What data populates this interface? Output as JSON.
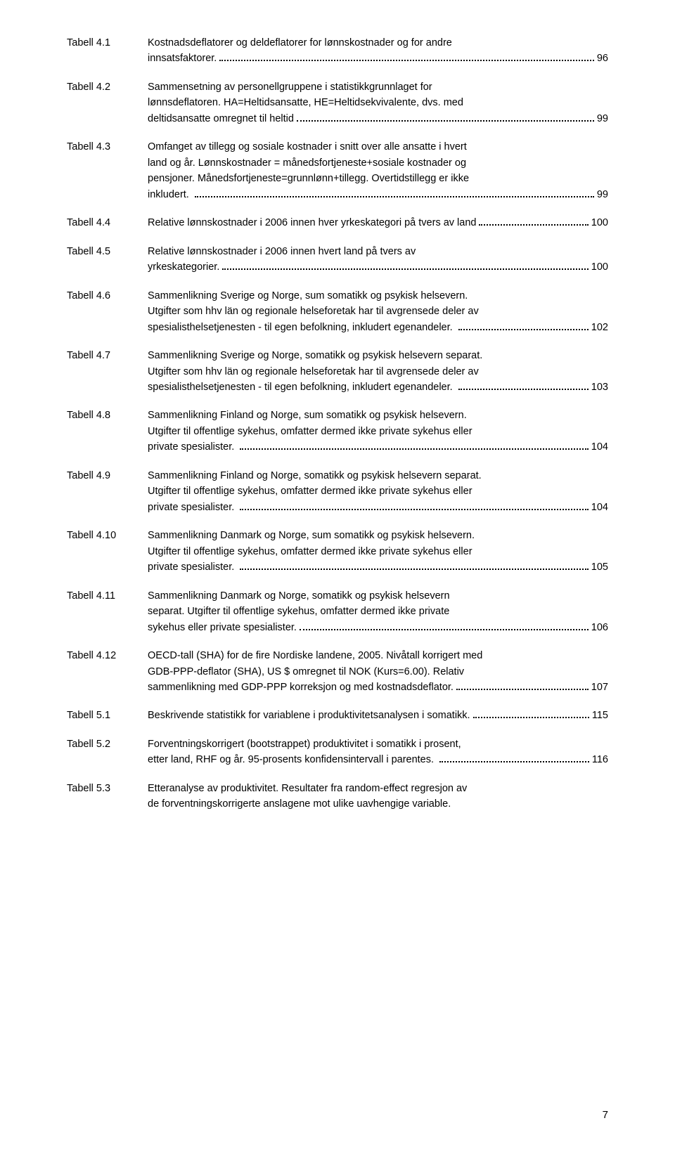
{
  "page_number": "7",
  "entries": [
    {
      "label": "Tabell 4.1",
      "lines": [
        "Kostnadsdeflatorer og deldeflatorer for lønnskostnader og for andre"
      ],
      "last_line": "innsatsfaktorer.",
      "page": "96"
    },
    {
      "label": "Tabell 4.2",
      "lines": [
        "Sammensetning av personellgruppene i statistikkgrunnlaget for",
        "lønnsdeflatoren. HA=Heltidsansatte, HE=Heltidsekvivalente, dvs. med"
      ],
      "last_line": "deltidsansatte omregnet til heltid",
      "page": "99"
    },
    {
      "label": "Tabell 4.3",
      "lines": [
        "Omfanget av tillegg og sosiale kostnader i snitt over alle ansatte i hvert",
        "land og år. Lønnskostnader = månedsfortjeneste+sosiale kostnader og",
        "pensjoner. Månedsfortjeneste=grunnlønn+tillegg. Overtidstillegg er ikke"
      ],
      "last_line": "inkludert. ",
      "page": "99"
    },
    {
      "label": "Tabell 4.4",
      "lines": [],
      "last_line": "Relative lønnskostnader i 2006 innen hver yrkeskategori på tvers av land",
      "page": "100"
    },
    {
      "label": "Tabell 4.5",
      "lines": [
        "Relative lønnskostnader i 2006 innen hvert land på tvers av"
      ],
      "last_line": "yrkeskategorier.",
      "page": "100"
    },
    {
      "label": "Tabell 4.6",
      "lines": [
        "Sammenlikning Sverige og Norge, sum somatikk og psykisk helsevern.",
        "Utgifter som hhv län og regionale helseforetak har til avgrensede deler av"
      ],
      "last_line": "spesialisthelsetjenesten - til egen befolkning, inkludert egenandeler. ",
      "page": "102"
    },
    {
      "label": "Tabell 4.7",
      "lines": [
        "Sammenlikning Sverige og Norge, somatikk og psykisk helsevern separat.",
        "Utgifter som hhv län og regionale helseforetak har til avgrensede deler av"
      ],
      "last_line": "spesialisthelsetjenesten - til egen befolkning, inkludert egenandeler. ",
      "page": "103"
    },
    {
      "label": "Tabell 4.8",
      "lines": [
        "Sammenlikning Finland og Norge, sum somatikk og psykisk helsevern.",
        "Utgifter til offentlige sykehus, omfatter dermed ikke private sykehus eller"
      ],
      "last_line": "private spesialister. ",
      "page": "104"
    },
    {
      "label": "Tabell 4.9",
      "lines": [
        "Sammenlikning Finland og Norge, somatikk og psykisk helsevern separat.",
        "Utgifter til offentlige sykehus, omfatter dermed ikke private sykehus eller"
      ],
      "last_line": "private spesialister. ",
      "page": "104"
    },
    {
      "label": "Tabell 4.10",
      "lines": [
        "Sammenlikning Danmark og Norge, sum somatikk og psykisk helsevern.",
        "Utgifter til offentlige sykehus, omfatter dermed ikke private sykehus eller"
      ],
      "last_line": "private spesialister. ",
      "page": "105"
    },
    {
      "label": "Tabell 4.11",
      "lines": [
        "Sammenlikning Danmark og Norge, somatikk og psykisk helsevern",
        "separat. Utgifter til offentlige sykehus, omfatter dermed ikke private"
      ],
      "last_line": "sykehus eller private spesialister.",
      "page": "106"
    },
    {
      "label": "Tabell 4.12",
      "lines": [
        "OECD-tall (SHA) for de fire Nordiske landene, 2005. Nivåtall korrigert med",
        "GDB-PPP-deflator (SHA), US $ omregnet til NOK (Kurs=6.00). Relativ"
      ],
      "last_line": "sammenlikning med GDP-PPP korreksjon og med kostnadsdeflator.",
      "page": "107"
    },
    {
      "label": "Tabell 5.1",
      "lines": [],
      "last_line": "Beskrivende statistikk for variablene i produktivitetsanalysen i somatikk.",
      "page": "115"
    },
    {
      "label": "Tabell 5.2",
      "lines": [
        "Forventningskorrigert (bootstrappet) produktivitet i somatikk i prosent,"
      ],
      "last_line": "etter land, RHF og år. 95-prosents konfidensintervall i parentes. ",
      "page": "116"
    },
    {
      "label": "Tabell 5.3",
      "lines": [
        "Etteranalyse av produktivitet. Resultater fra random-effect regresjon av",
        "de forventningskorrigerte anslagene mot ulike uavhengige variable."
      ],
      "last_line": null,
      "page": null
    }
  ]
}
